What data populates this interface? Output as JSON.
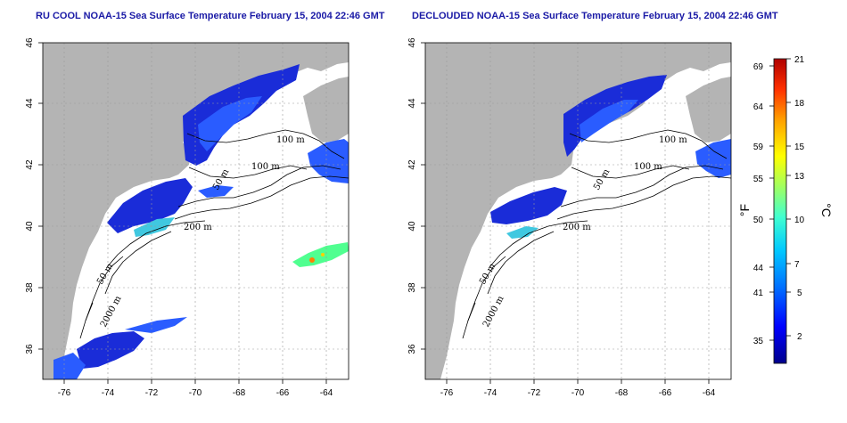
{
  "titles": {
    "left": "RU COOL NOAA-15 Sea Surface Temperature February 15, 2004 22:46 GMT",
    "right": "DECLOUDED NOAA-15 Sea Surface Temperature February 15, 2004 22:46 GMT"
  },
  "axes": {
    "x_ticks": [
      "-76",
      "-74",
      "-72",
      "-70",
      "-68",
      "-66",
      "-64"
    ],
    "y_ticks": [
      "36",
      "38",
      "40",
      "42",
      "44",
      "46"
    ]
  },
  "isobaths": {
    "left": [
      "100 m",
      "100 m",
      "50 m",
      "200 m",
      "50 m",
      "2000 m"
    ],
    "right": [
      "100 m",
      "100 m",
      "50 m",
      "200 m",
      "50 m",
      "2000 m"
    ]
  },
  "colorbar": {
    "fahrenheit_ticks": [
      "69",
      "64",
      "59",
      "55",
      "50",
      "44",
      "41",
      "35"
    ],
    "celsius_ticks": [
      "21",
      "18",
      "15",
      "13",
      "10",
      "7",
      "5",
      "2"
    ],
    "fahrenheit_unit": "°F",
    "celsius_unit": "°C",
    "colors": [
      "#00008b",
      "#0000ff",
      "#0070ff",
      "#00c8ff",
      "#40ffd0",
      "#a0ff60",
      "#ffff00",
      "#ffa000",
      "#ff3000",
      "#b00000"
    ]
  },
  "colors": {
    "land": "#b4b4b4",
    "title": "#1a1aa6",
    "sst_dark": "#1a2cd8",
    "sst_mid": "#2a5cff"
  }
}
